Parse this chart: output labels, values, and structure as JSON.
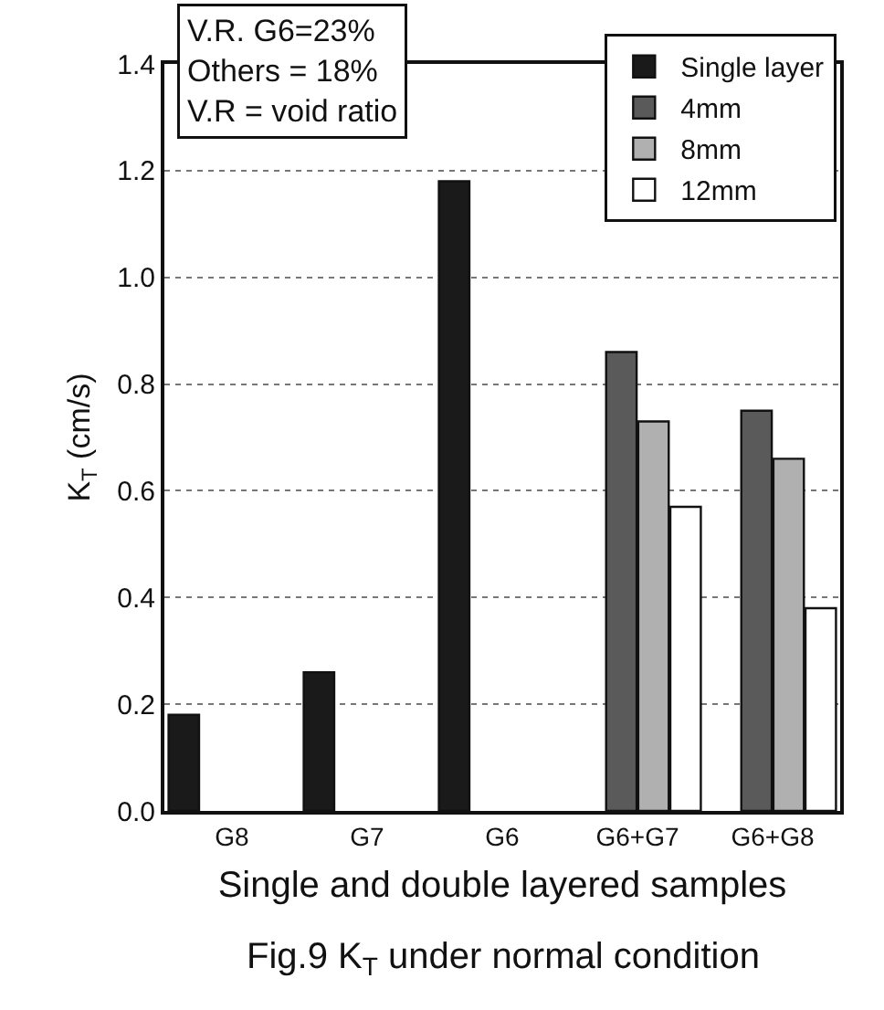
{
  "chart_data": {
    "type": "bar",
    "xlabel": "Single and double layered samples",
    "ylabel": "K$_{T}$ (cm/s)",
    "categories": [
      "G8",
      "G7",
      "G6",
      "G6+G7",
      "G6+G8"
    ],
    "series": [
      {
        "name": "Single layer",
        "color": "#1a1a1a",
        "values": [
          0.18,
          0.26,
          1.18,
          null,
          null
        ]
      },
      {
        "name": "4mm",
        "color": "#5a5a5a",
        "values": [
          null,
          null,
          null,
          0.86,
          0.75
        ]
      },
      {
        "name": "8mm",
        "color": "#b0b0b0",
        "values": [
          null,
          null,
          null,
          0.73,
          0.66
        ]
      },
      {
        "name": "12mm",
        "color": "#ffffff",
        "values": [
          null,
          null,
          null,
          0.57,
          0.38
        ]
      }
    ],
    "ylim": [
      0,
      1.4
    ],
    "yticks": [
      {
        "value": 0,
        "label": "0.0"
      },
      0.2,
      0.4,
      0.6,
      0.8,
      {
        "value": 1,
        "label": "1.0"
      },
      1.2,
      1.4
    ],
    "grid": "y",
    "legend": "top right",
    "annotations": [
      "V.R. G6=23%\nOthers = 18%\nV.R = void ratio",
      "Fig.9 K$_{T}$ under normal condition"
    ]
  }
}
